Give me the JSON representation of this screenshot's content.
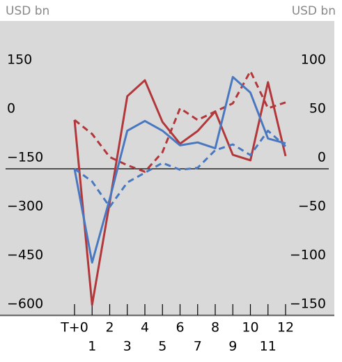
{
  "chart_data": {
    "type": "line",
    "ylabel": "USD bn",
    "y2label": "USD bn",
    "categories": [
      "T+0",
      "1",
      "2",
      "3",
      "4",
      "5",
      "6",
      "7",
      "8",
      "9",
      "10",
      "11",
      "12"
    ],
    "ylim": [
      -600,
      300
    ],
    "yticks": [
      {
        "value": -600,
        "label": "−600"
      },
      {
        "value": -450,
        "label": "−450"
      },
      {
        "value": -300,
        "label": "−300"
      },
      {
        "value": -150,
        "label": "−150"
      },
      0,
      150
    ],
    "y2lim": [
      -150,
      150
    ],
    "y2ticks": [
      {
        "value": -150,
        "label": "−150"
      },
      {
        "value": -100,
        "label": "−100"
      },
      {
        "value": -50,
        "label": "−50"
      },
      0,
      50,
      100
    ],
    "grid": false,
    "series": [
      {
        "color": "#b2373a",
        "dash": false,
        "axis": "y",
        "values": [
          0,
          -568,
          -253,
          73,
          122,
          -6,
          -73,
          -34,
          26,
          -107,
          -124,
          116,
          -111
        ]
      },
      {
        "color": "#b2373a",
        "dash": true,
        "axis": "y",
        "values": [
          0,
          -43,
          -114,
          -139,
          -159,
          -99,
          36,
          0,
          26,
          51,
          150,
          36,
          54
        ]
      },
      {
        "color": "#4a78c0",
        "dash": false,
        "axis": "y2",
        "values": [
          0,
          -96,
          -31,
          39,
          49,
          39,
          24,
          27,
          21,
          94,
          78,
          31,
          26
        ]
      },
      {
        "color": "#4a78c0",
        "dash": true,
        "axis": "y2",
        "values": [
          0,
          -13,
          -39,
          -14,
          -4,
          6,
          -1,
          1,
          19,
          25,
          14,
          39,
          23
        ]
      }
    ]
  }
}
